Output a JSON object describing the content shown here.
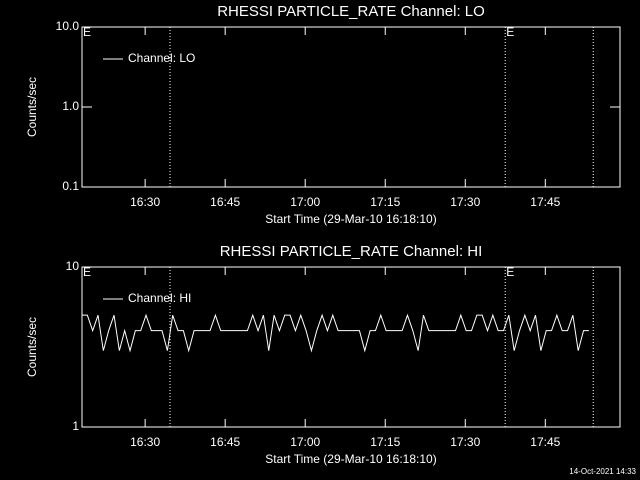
{
  "chart_data": [
    {
      "type": "line",
      "title": "RHESSI PARTICLE_RATE Channel: LO",
      "xlabel": "Start Time (29-Mar-10 16:18:10)",
      "ylabel": "Counts/sec",
      "log_y": true,
      "xlim": [
        0,
        6050
      ],
      "ylim": [
        0.1,
        10
      ],
      "xticks": [
        {
          "value": 710,
          "label": "16:30"
        },
        {
          "value": 1610,
          "label": "16:45"
        },
        {
          "value": 2510,
          "label": "17:00"
        },
        {
          "value": 3410,
          "label": "17:15"
        },
        {
          "value": 4310,
          "label": "17:30"
        },
        {
          "value": 5210,
          "label": "17:45"
        }
      ],
      "yticks": [
        0.1,
        {
          "value": 1,
          "label": "1.0"
        },
        {
          "value": 10,
          "label": "10.0"
        }
      ],
      "vlines": [
        990,
        4759,
        5749
      ],
      "markers": [
        {
          "x": 0,
          "label": "E"
        },
        {
          "x": 4759,
          "label": "E"
        }
      ],
      "legend": "upper left",
      "series": [
        {
          "name": "Channel: LO",
          "color": "#ffffff",
          "x": [],
          "values": []
        }
      ]
    },
    {
      "type": "line",
      "title": "RHESSI PARTICLE_RATE Channel: HI",
      "xlabel": "Start Time (29-Mar-10 16:18:10)",
      "ylabel": "Counts/sec",
      "log_y": true,
      "xlim": [
        0,
        6050
      ],
      "ylim": [
        1,
        10
      ],
      "xticks": [
        {
          "value": 710,
          "label": "16:30"
        },
        {
          "value": 1610,
          "label": "16:45"
        },
        {
          "value": 2510,
          "label": "17:00"
        },
        {
          "value": 3410,
          "label": "17:15"
        },
        {
          "value": 4310,
          "label": "17:30"
        },
        {
          "value": 5210,
          "label": "17:45"
        }
      ],
      "yticks": [
        1,
        10
      ],
      "vlines": [
        990,
        4759,
        5749
      ],
      "markers": [
        {
          "x": 0,
          "label": "E"
        },
        {
          "x": 4759,
          "label": "E"
        }
      ],
      "legend": "upper left",
      "series": [
        {
          "name": "Channel: HI",
          "color": "#ffffff",
          "x": [
            0,
            60,
            120,
            180,
            240,
            300,
            360,
            420,
            480,
            540,
            600,
            660,
            720,
            780,
            840,
            900,
            960,
            1020,
            1080,
            1140,
            1200,
            1260,
            1320,
            1380,
            1440,
            1500,
            1560,
            1620,
            1680,
            1740,
            1800,
            1860,
            1920,
            1980,
            2040,
            2100,
            2160,
            2220,
            2280,
            2340,
            2400,
            2460,
            2520,
            2580,
            2640,
            2700,
            2760,
            2820,
            2880,
            2940,
            3000,
            3060,
            3120,
            3180,
            3240,
            3300,
            3360,
            3420,
            3480,
            3540,
            3600,
            3660,
            3720,
            3780,
            3840,
            3900,
            3960,
            4020,
            4080,
            4140,
            4200,
            4260,
            4320,
            4380,
            4440,
            4500,
            4560,
            4620,
            4680,
            4740,
            4800,
            4860,
            4920,
            4980,
            5040,
            5100,
            5160,
            5220,
            5280,
            5340,
            5400,
            5460,
            5520,
            5580,
            5640,
            5700
          ],
          "values": [
            5,
            5,
            4,
            5,
            3,
            4,
            5,
            3,
            4,
            3,
            4,
            4,
            5,
            4,
            4,
            4,
            3,
            5,
            4,
            4,
            3,
            4,
            4,
            4,
            4,
            5,
            4,
            4,
            4,
            4,
            4,
            4,
            5,
            4,
            5,
            3,
            5,
            4,
            5,
            5,
            4,
            5,
            4,
            3,
            4,
            5,
            4,
            5,
            4,
            4,
            4,
            4,
            4,
            3,
            4,
            4,
            5,
            4,
            4,
            4,
            4,
            5,
            4,
            3,
            5,
            4,
            4,
            4,
            4,
            4,
            4,
            5,
            4,
            4,
            5,
            5,
            4,
            5,
            4,
            4,
            5,
            3,
            4,
            5,
            4,
            5,
            3,
            4,
            4,
            5,
            4,
            4,
            5,
            3,
            4,
            4
          ]
        }
      ]
    }
  ],
  "footer": "14-Oct-2021 14:33"
}
